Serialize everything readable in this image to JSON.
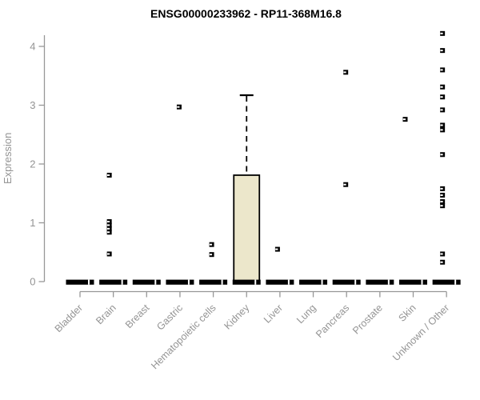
{
  "chart_data": {
    "type": "boxplot",
    "title": "ENSG00000233962 - RP11-368M16.8",
    "ylabel": "Expression",
    "ylim": [
      0,
      4
    ],
    "yticks": [
      0,
      1,
      2,
      3,
      4
    ],
    "grid": false,
    "legend": false,
    "categories": [
      "Bladder",
      "Brain",
      "Breast",
      "Gastric",
      "Hematopoietic cells",
      "Kidney",
      "Liver",
      "Lung",
      "Pancreas",
      "Prostate",
      "Skin",
      "Unknown / Other"
    ],
    "boxes": [
      {
        "category": "Bladder",
        "q1": 0,
        "median": 0,
        "q3": 0.05,
        "whisker_high": null
      },
      {
        "category": "Brain",
        "q1": 0,
        "median": 0,
        "q3": 0.05,
        "whisker_high": null
      },
      {
        "category": "Breast",
        "q1": 0,
        "median": 0,
        "q3": 0.05,
        "whisker_high": null
      },
      {
        "category": "Gastric",
        "q1": 0,
        "median": 0,
        "q3": 0.05,
        "whisker_high": null
      },
      {
        "category": "Hematopoietic cells",
        "q1": 0,
        "median": 0,
        "q3": 0.05,
        "whisker_high": null
      },
      {
        "category": "Kidney",
        "q1": 0,
        "median": 0,
        "q3": 1.81,
        "whisker_high": 3.17
      },
      {
        "category": "Liver",
        "q1": 0,
        "median": 0,
        "q3": 0.05,
        "whisker_high": null
      },
      {
        "category": "Lung",
        "q1": 0,
        "median": 0,
        "q3": 0.05,
        "whisker_high": null
      },
      {
        "category": "Pancreas",
        "q1": 0,
        "median": 0,
        "q3": 0.05,
        "whisker_high": null
      },
      {
        "category": "Prostate",
        "q1": 0,
        "median": 0,
        "q3": 0.05,
        "whisker_high": null
      },
      {
        "category": "Skin",
        "q1": 0,
        "median": 0,
        "q3": 0.05,
        "whisker_high": null
      },
      {
        "category": "Unknown / Other",
        "q1": 0,
        "median": 0,
        "q3": 0.05,
        "whisker_high": null
      }
    ],
    "outliers": [
      {
        "category": "Brain",
        "dx": -5,
        "values": [
          1.81,
          1.02,
          0.96,
          0.9,
          0.84,
          0.47
        ]
      },
      {
        "category": "Gastric",
        "dx": -1,
        "values": [
          2.97
        ]
      },
      {
        "category": "Hematopoietic cells",
        "dx": -2,
        "values": [
          0.63,
          0.46
        ]
      },
      {
        "category": "Liver",
        "dx": -3,
        "values": [
          0.55
        ]
      },
      {
        "category": "Pancreas",
        "dx": -1,
        "values": [
          3.56,
          1.65
        ]
      },
      {
        "category": "Skin",
        "dx": -10,
        "values": [
          2.76
        ]
      },
      {
        "category": "Unknown / Other",
        "dx": -5,
        "values": [
          4.22,
          3.93,
          3.6,
          3.31,
          3.14,
          2.92,
          2.66,
          2.58,
          2.16,
          1.58,
          1.47,
          1.36,
          1.29,
          0.47,
          0.33
        ]
      }
    ],
    "colors": {
      "box_fill": "#ECE7CB",
      "box_stroke": "#000000",
      "bar": "#000000",
      "axis": "#979797",
      "tick_label": "#949494",
      "title": "#000000"
    }
  }
}
